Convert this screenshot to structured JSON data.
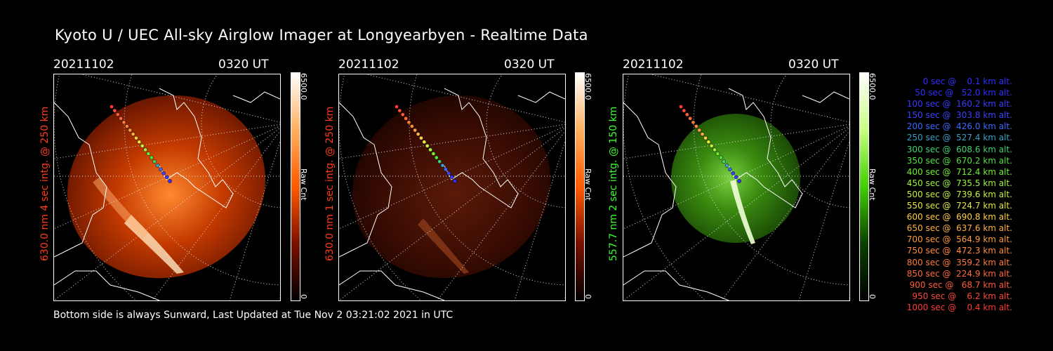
{
  "title": "Kyoto U / UEC All-sky Airglow Imager at Longyearbyen - Realtime Data",
  "footer": "Bottom side is always Sunward, Last Updated at Tue Nov  2 03:21:02 2021 in UTC",
  "panels": [
    {
      "date": "20211102",
      "time": "0320 UT",
      "side_label": "630.0 nm 4 sec intg. @ 250 km",
      "side_color": "#ff3b1a",
      "colorbar": {
        "max": "6500.0",
        "unit": "Raw Cnt",
        "zero": "0",
        "colors": [
          "#ffffff",
          "#ffb060",
          "#ff5a00",
          "#7a1000",
          "#000000"
        ]
      }
    },
    {
      "date": "20211102",
      "time": "0320 UT",
      "side_label": "630.0 nm 1 sec intg. @ 250 km",
      "side_color": "#ff3b1a",
      "colorbar": {
        "max": "6500.0",
        "unit": "Raw Cnt",
        "zero": "0",
        "colors": [
          "#ffffff",
          "#ffb060",
          "#ff5a00",
          "#7a1000",
          "#000000"
        ]
      }
    },
    {
      "date": "20211102",
      "time": "0320 UT",
      "side_label": "557.7 nm 2 sec intg. @ 150 km",
      "side_color": "#3aff2a",
      "colorbar": {
        "max": "6500.0",
        "unit": "Raw Cnt",
        "zero": "0",
        "colors": [
          "#ffffff",
          "#c8ff80",
          "#40d000",
          "#0a4000",
          "#000000"
        ]
      }
    }
  ],
  "legend": [
    {
      "text": "   0 sec @    0.1 km alt.",
      "color": "#3030ff"
    },
    {
      "text": "  50 sec @   52.0 km alt.",
      "color": "#3030ff"
    },
    {
      "text": " 100 sec @  160.2 km alt.",
      "color": "#3a3aff"
    },
    {
      "text": " 150 sec @  303.8 km alt.",
      "color": "#3a44ff"
    },
    {
      "text": " 200 sec @  426.0 km alt.",
      "color": "#3a6aff"
    },
    {
      "text": " 250 sec @  527.4 km alt.",
      "color": "#3aa0c8"
    },
    {
      "text": " 300 sec @  608.6 km alt.",
      "color": "#40d070"
    },
    {
      "text": " 350 sec @  670.2 km alt.",
      "color": "#50e040"
    },
    {
      "text": " 400 sec @  712.4 km alt.",
      "color": "#70f030"
    },
    {
      "text": " 450 sec @  735.5 km alt.",
      "color": "#a0f040"
    },
    {
      "text": " 500 sec @  739.6 km alt.",
      "color": "#c8f040"
    },
    {
      "text": " 550 sec @  724.7 km alt.",
      "color": "#e8e840"
    },
    {
      "text": " 600 sec @  690.8 km alt.",
      "color": "#ffd040"
    },
    {
      "text": " 650 sec @  637.6 km alt.",
      "color": "#ffb040"
    },
    {
      "text": " 700 sec @  564.9 km alt.",
      "color": "#ff9a3a"
    },
    {
      "text": " 750 sec @  472.3 km alt.",
      "color": "#ff8a3a"
    },
    {
      "text": " 800 sec @  359.2 km alt.",
      "color": "#ff7a3a"
    },
    {
      "text": " 850 sec @  224.9 km alt.",
      "color": "#ff6a3a"
    },
    {
      "text": " 900 sec @   68.7 km alt.",
      "color": "#ff5a3a"
    },
    {
      "text": " 950 sec @    6.2 km alt.",
      "color": "#ff4a3a"
    },
    {
      "text": "1000 sec @    0.4 km alt.",
      "color": "#ff3a3a"
    }
  ]
}
